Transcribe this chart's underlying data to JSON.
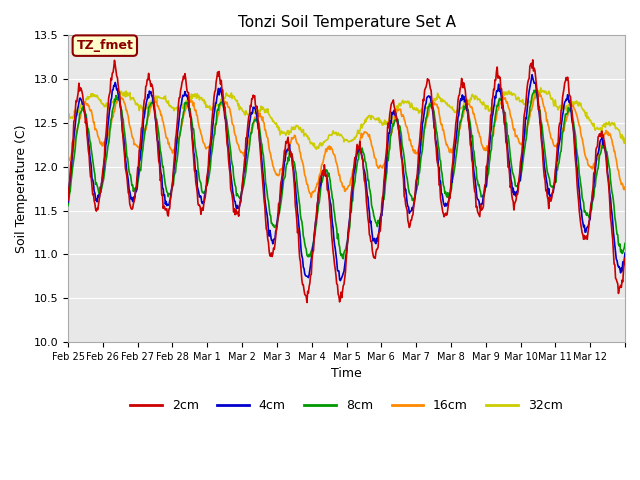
{
  "title": "Tonzi Soil Temperature Set A",
  "ylabel": "Soil Temperature (C)",
  "xlabel": "Time",
  "ylim": [
    10.0,
    13.5
  ],
  "bg_color": "#e8e8e8",
  "annotation_text": "TZ_fmet",
  "annotation_fg": "#8b0000",
  "annotation_bg": "#ffffcc",
  "annotation_border": "#8b0000",
  "legend_labels": [
    "2cm",
    "4cm",
    "8cm",
    "16cm",
    "32cm"
  ],
  "line_colors": [
    "#cc0000",
    "#0000cc",
    "#009900",
    "#ff8800",
    "#cccc00"
  ],
  "line_width": 1.2,
  "xtick_labels": [
    "Feb 25",
    "Feb 26",
    "Feb 27",
    "Feb 28",
    "Mar 1",
    "Mar 2",
    "Mar 3",
    "Mar 4",
    "Mar 5",
    "Mar 6",
    "Mar 7",
    "Mar 8",
    "Mar 9",
    "Mar 10",
    "Mar 11",
    "Mar 12"
  ],
  "ytick_values": [
    10.0,
    10.5,
    11.0,
    11.5,
    12.0,
    12.5,
    13.0,
    13.5
  ],
  "grid_color": "#ffffff",
  "n_days": 16,
  "pts_per_day": 48
}
